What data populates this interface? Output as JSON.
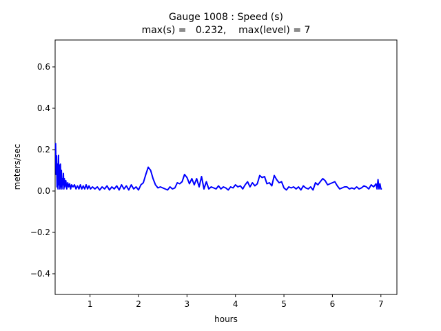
{
  "chart_data": {
    "type": "line",
    "title": "Gauge 1008 : Speed (s)",
    "subtitle": "max(s) =   0.232,    max(level) = 7",
    "xlabel": "hours",
    "ylabel": "meters/sec",
    "xlim": [
      0.28,
      7.33
    ],
    "ylim": [
      -0.5,
      0.73
    ],
    "xticks": [
      1,
      2,
      3,
      4,
      5,
      6,
      7
    ],
    "yticks": [
      -0.4,
      -0.2,
      0.0,
      0.2,
      0.4,
      0.6
    ],
    "ytick_labels": [
      "−0.4",
      "−0.2",
      "0.0",
      "0.2",
      "0.4",
      "0.6"
    ],
    "grid": false,
    "series": [
      {
        "color": "#0000ff",
        "x": [
          0.29,
          0.3,
          0.31,
          0.32,
          0.33,
          0.34,
          0.35,
          0.36,
          0.37,
          0.38,
          0.39,
          0.4,
          0.41,
          0.42,
          0.43,
          0.44,
          0.45,
          0.46,
          0.47,
          0.48,
          0.5,
          0.52,
          0.54,
          0.56,
          0.58,
          0.6,
          0.62,
          0.65,
          0.68,
          0.71,
          0.74,
          0.77,
          0.8,
          0.83,
          0.86,
          0.89,
          0.92,
          0.95,
          0.98,
          1.01,
          1.05,
          1.1,
          1.15,
          1.2,
          1.25,
          1.3,
          1.35,
          1.4,
          1.45,
          1.5,
          1.55,
          1.6,
          1.65,
          1.7,
          1.75,
          1.8,
          1.85,
          1.9,
          1.95,
          2.0,
          2.05,
          2.1,
          2.15,
          2.2,
          2.25,
          2.3,
          2.35,
          2.4,
          2.45,
          2.5,
          2.55,
          2.6,
          2.65,
          2.7,
          2.75,
          2.8,
          2.85,
          2.9,
          2.95,
          3.0,
          3.05,
          3.1,
          3.15,
          3.2,
          3.25,
          3.3,
          3.35,
          3.4,
          3.45,
          3.5,
          3.55,
          3.6,
          3.65,
          3.7,
          3.75,
          3.8,
          3.85,
          3.9,
          3.95,
          4.0,
          4.05,
          4.1,
          4.15,
          4.2,
          4.25,
          4.3,
          4.35,
          4.4,
          4.45,
          4.5,
          4.55,
          4.6,
          4.65,
          4.7,
          4.75,
          4.8,
          4.85,
          4.9,
          4.95,
          5.0,
          5.05,
          5.1,
          5.15,
          5.2,
          5.25,
          5.3,
          5.35,
          5.4,
          5.45,
          5.5,
          5.55,
          5.6,
          5.65,
          5.7,
          5.75,
          5.8,
          5.85,
          5.9,
          5.95,
          6.0,
          6.05,
          6.1,
          6.15,
          6.2,
          6.25,
          6.3,
          6.35,
          6.4,
          6.45,
          6.5,
          6.55,
          6.6,
          6.65,
          6.7,
          6.75,
          6.8,
          6.85,
          6.9,
          6.92,
          6.94,
          6.96,
          6.98,
          7.0,
          7.02
        ],
        "y": [
          0.232,
          0.08,
          0.17,
          0.02,
          0.13,
          0.01,
          0.172,
          0.03,
          0.125,
          0.01,
          0.13,
          0.02,
          0.1,
          0.01,
          0.06,
          0.03,
          0.085,
          0.01,
          0.06,
          0.02,
          0.05,
          0.01,
          0.04,
          0.02,
          0.035,
          0.01,
          0.03,
          0.02,
          0.03,
          0.01,
          0.025,
          0.01,
          0.03,
          0.01,
          0.025,
          0.01,
          0.03,
          0.01,
          0.025,
          0.01,
          0.02,
          0.01,
          0.02,
          0.005,
          0.02,
          0.01,
          0.025,
          0.005,
          0.02,
          0.01,
          0.025,
          0.005,
          0.03,
          0.01,
          0.025,
          0.005,
          0.03,
          0.01,
          0.02,
          0.005,
          0.03,
          0.04,
          0.08,
          0.115,
          0.1,
          0.06,
          0.03,
          0.015,
          0.02,
          0.015,
          0.01,
          0.005,
          0.02,
          0.01,
          0.015,
          0.04,
          0.035,
          0.045,
          0.08,
          0.065,
          0.035,
          0.06,
          0.03,
          0.06,
          0.02,
          0.07,
          0.01,
          0.045,
          0.01,
          0.02,
          0.015,
          0.01,
          0.025,
          0.01,
          0.02,
          0.015,
          0.005,
          0.02,
          0.015,
          0.03,
          0.02,
          0.025,
          0.01,
          0.03,
          0.045,
          0.02,
          0.04,
          0.025,
          0.035,
          0.075,
          0.065,
          0.07,
          0.035,
          0.04,
          0.025,
          0.075,
          0.055,
          0.04,
          0.045,
          0.015,
          0.005,
          0.02,
          0.015,
          0.02,
          0.01,
          0.02,
          0.005,
          0.025,
          0.015,
          0.01,
          0.02,
          0.005,
          0.04,
          0.03,
          0.045,
          0.06,
          0.05,
          0.03,
          0.035,
          0.04,
          0.045,
          0.025,
          0.01,
          0.015,
          0.02,
          0.02,
          0.01,
          0.015,
          0.01,
          0.02,
          0.01,
          0.015,
          0.025,
          0.02,
          0.01,
          0.03,
          0.02,
          0.035,
          0.01,
          0.055,
          0.01,
          0.035,
          0.01,
          0.01
        ]
      }
    ]
  }
}
